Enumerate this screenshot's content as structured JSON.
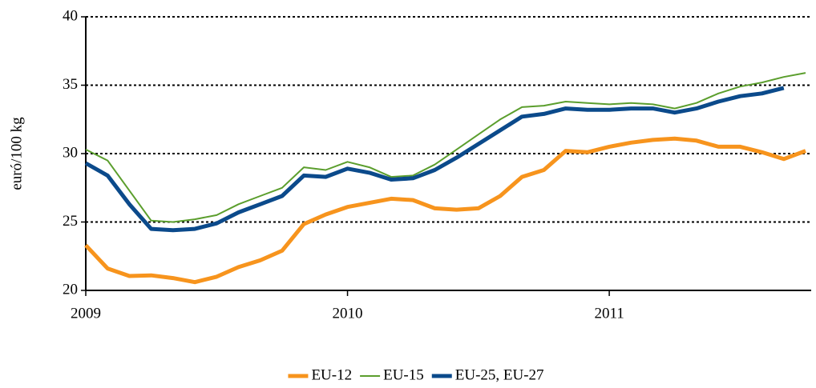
{
  "chart_data": {
    "type": "line",
    "y_label": "euró/100 kg",
    "categories": [
      "2009",
      null,
      null,
      null,
      null,
      null,
      null,
      null,
      null,
      null,
      null,
      null,
      "2010",
      null,
      null,
      null,
      null,
      null,
      null,
      null,
      null,
      null,
      null,
      null,
      "2011",
      null,
      null,
      null,
      null,
      null,
      null,
      null,
      null,
      null
    ],
    "series": [
      {
        "name": "EU-12",
        "color": "#f7941d",
        "width": 5,
        "values": [
          23.3,
          21.6,
          21.05,
          21.1,
          20.9,
          20.6,
          21.0,
          21.7,
          22.2,
          22.9,
          24.85,
          25.55,
          26.1,
          26.4,
          26.7,
          26.6,
          26.0,
          25.9,
          26.0,
          26.9,
          28.3,
          28.8,
          30.2,
          30.1,
          30.5,
          30.8,
          31.0,
          31.1,
          30.95,
          30.5,
          30.5,
          30.1,
          29.6,
          30.2
        ]
      },
      {
        "name": "EU-15",
        "color": "#5b9e2d",
        "width": 2,
        "values": [
          30.3,
          29.5,
          27.3,
          25.1,
          25.0,
          25.2,
          25.5,
          26.3,
          26.9,
          27.5,
          29.0,
          28.8,
          29.4,
          29.0,
          28.3,
          28.4,
          29.2,
          30.3,
          31.4,
          32.5,
          33.4,
          33.5,
          33.8,
          33.7,
          33.6,
          33.7,
          33.6,
          33.3,
          33.7,
          34.4,
          34.9,
          35.2,
          35.6,
          35.9
        ]
      },
      {
        "name": "EU-25, EU-27",
        "color": "#0b4a8b",
        "width": 5,
        "values": [
          29.3,
          28.4,
          26.3,
          24.5,
          24.4,
          24.5,
          24.9,
          25.7,
          26.3,
          26.9,
          28.4,
          28.3,
          28.9,
          28.6,
          28.1,
          28.2,
          28.8,
          29.7,
          30.7,
          31.7,
          32.7,
          32.9,
          33.3,
          33.2,
          33.2,
          33.3,
          33.3,
          33.0,
          33.3,
          33.8,
          34.2,
          34.4,
          34.8,
          null
        ]
      }
    ],
    "ylim": [
      20,
      40
    ],
    "yticks": [
      20,
      25,
      30,
      35,
      40
    ],
    "grid": true,
    "legend": "bottom"
  }
}
